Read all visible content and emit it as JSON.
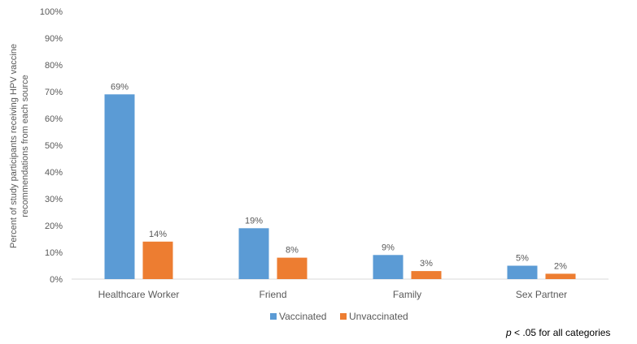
{
  "chart_data": {
    "type": "bar",
    "categories": [
      "Healthcare Worker",
      "Friend",
      "Family",
      "Sex Partner"
    ],
    "series": [
      {
        "name": "Vaccinated",
        "values": [
          69,
          19,
          9,
          5
        ],
        "labels": [
          "69%",
          "19%",
          "9%",
          "5%"
        ],
        "color": "#5B9BD5"
      },
      {
        "name": "Unvaccinated",
        "values": [
          14,
          8,
          3,
          2
        ],
        "labels": [
          "14%",
          "8%",
          "3%",
          "2%"
        ],
        "color": "#ED7D31"
      }
    ],
    "ylabel_line1": "Percent of study participants receiving HPV vaccine",
    "ylabel_line2": "recommendations from each source",
    "ylim": [
      0,
      100
    ],
    "yticks": [
      "0%",
      "10%",
      "20%",
      "30%",
      "40%",
      "50%",
      "60%",
      "70%",
      "80%",
      "90%",
      "100%"
    ],
    "grid": false,
    "legend_position": "bottom"
  },
  "annotation": {
    "p_symbol": "p",
    "rest": " < .05 for all categories"
  }
}
